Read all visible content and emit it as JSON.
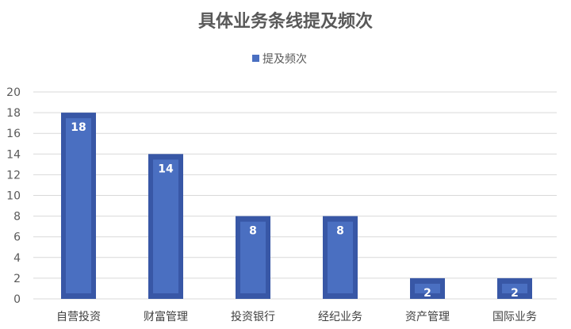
{
  "chart_data": {
    "type": "bar",
    "title": "具体业务条线提及频次",
    "categories": [
      "自营投资",
      "财富管理",
      "投资银行",
      "经纪业务",
      "资产管理",
      "国际业务"
    ],
    "series": [
      {
        "name": "提及频次",
        "values": [
          18,
          14,
          8,
          8,
          2,
          2
        ]
      }
    ],
    "xlabel": "",
    "ylabel": "",
    "ylim": [
      0,
      20
    ],
    "yticks": [
      0,
      2,
      4,
      6,
      8,
      10,
      12,
      14,
      16,
      18,
      20
    ],
    "grid": true,
    "legend": "top",
    "data_labels": true,
    "colors": {
      "bar_fill": "#4a6fc1",
      "bar_border": "#3857a6",
      "grid": "#d9d9d9"
    }
  }
}
